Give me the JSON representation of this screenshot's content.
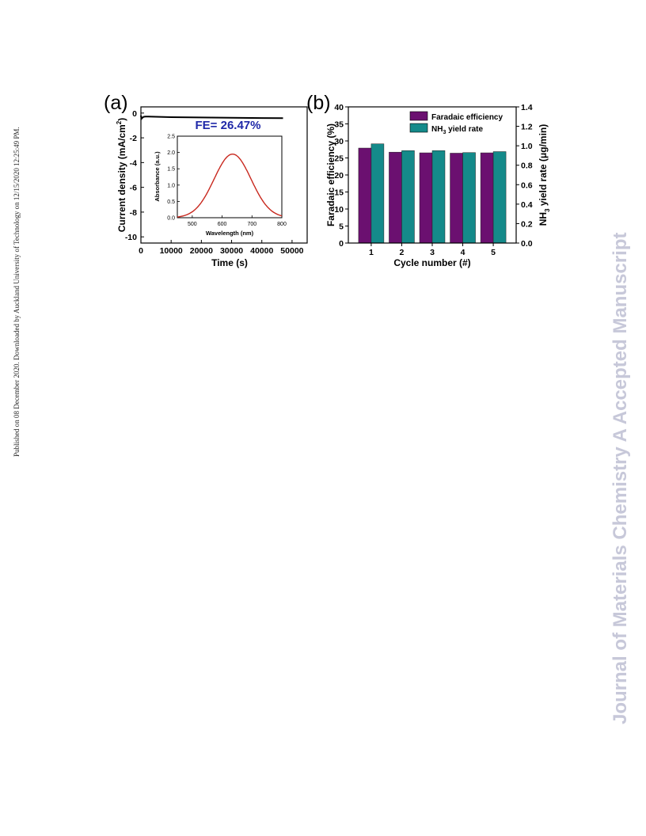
{
  "left_margin_text": "Published on 08 December 2020. Downloaded by Auckland University of Technology on 12/15/2020 12:25:49 PM.",
  "watermark_text": "Journal of Materials Chemistry A Accepted Manuscript",
  "colors": {
    "faradaic": "#6b1070",
    "nh3": "#148a8a",
    "uv_curve": "#c8281e",
    "fe_label": "#1f28a8"
  },
  "chart_data": [
    {
      "type": "line",
      "panel_label": "(a)",
      "xlabel": "Time (s)",
      "ylabel": "Current density (mA/cm",
      "ylabel_sup": "2",
      "ylabel_end": ")",
      "xlim": [
        0,
        55000
      ],
      "ylim": [
        -10.5,
        0.5
      ],
      "xticks": [
        0,
        10000,
        20000,
        30000,
        40000,
        50000
      ],
      "yticks": [
        0,
        -2,
        -4,
        -6,
        -8,
        -10
      ],
      "annotation": "FE= 26.47%",
      "series": [
        {
          "x": [
            0,
            200,
            600,
            1000,
            1500,
            2500,
            5000,
            10000,
            20000,
            30000,
            40000,
            47000
          ],
          "y": [
            -0.2,
            -0.45,
            -0.35,
            -0.3,
            -0.28,
            -0.28,
            -0.3,
            -0.33,
            -0.36,
            -0.38,
            -0.4,
            -0.41
          ]
        }
      ],
      "inset": {
        "type": "line",
        "xlabel": "Wavelength (nm)",
        "ylabel": "Absorbance (a.u.)",
        "xlim": [
          450,
          800
        ],
        "ylim": [
          0,
          2.5
        ],
        "xticks": [
          500,
          600,
          700,
          800
        ],
        "yticks": [
          0.0,
          0.5,
          1.0,
          1.5,
          2.0,
          2.5
        ],
        "peak_x": 635,
        "peak_y": 1.95,
        "sigma": 62
      }
    },
    {
      "type": "bar",
      "panel_label": "(b)",
      "xlabel": "Cycle number (#)",
      "ylabel": "Faradaic efficiency (%)",
      "y2label_prefix": "NH",
      "y2label_sub": "3",
      "y2label_rest": " yield rate (μg/min)",
      "categories": [
        "1",
        "2",
        "3",
        "4",
        "5"
      ],
      "ylim": [
        0,
        40
      ],
      "yticks": [
        0,
        5,
        10,
        15,
        20,
        25,
        30,
        35,
        40
      ],
      "y2lim": [
        0,
        1.4
      ],
      "y2ticks": [
        "0.0",
        "0.2",
        "0.4",
        "0.6",
        "0.8",
        "1.0",
        "1.2",
        "1.4"
      ],
      "legend_position": "top-right",
      "series": [
        {
          "name": "Faradaic efficiency",
          "axis": "left",
          "values": [
            27.9,
            26.7,
            26.5,
            26.4,
            26.5
          ]
        },
        {
          "name_prefix": "NH",
          "name_sub": "3",
          "name_rest": " yield rate",
          "axis": "right",
          "values": [
            1.02,
            0.95,
            0.95,
            0.93,
            0.94
          ]
        }
      ]
    }
  ]
}
